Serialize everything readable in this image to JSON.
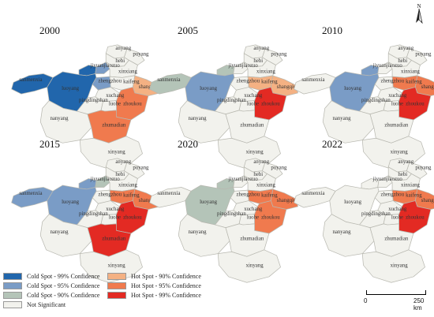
{
  "colors": {
    "cold99": "#2166ac",
    "cold95": "#7a9cc6",
    "cold90": "#b4c4b8",
    "hot90": "#f4b183",
    "hot95": "#f07a4e",
    "hot99": "#e32a23",
    "ns": "#f2f2ed",
    "stroke": "#b8b8b0"
  },
  "panels": [
    {
      "year": "2000",
      "classes": {
        "sanmenxia": "cold99",
        "luoyang": "cold99",
        "jiyuan": "cold99",
        "jiaozuo": "cold95",
        "zhengzhou": "cold95",
        "shangqiu": "hot90",
        "zhoukou": "hot95",
        "zhumadian": "hot95"
      }
    },
    {
      "year": "2005",
      "classes": {
        "sanmenxia": "cold90",
        "luoyang": "cold95",
        "jiyuan": "cold90",
        "shangqiu": "hot90",
        "kaifeng": "hot90",
        "zhoukou": "hot99"
      }
    },
    {
      "year": "2010",
      "classes": {
        "luoyang": "cold95",
        "jiyuan": "cold95",
        "shangqiu": "hot95",
        "zhoukou": "hot99",
        "kaifeng": "hot95"
      }
    },
    {
      "year": "2015",
      "classes": {
        "luoyang": "cold95",
        "jiyuan": "cold95",
        "sanmenxia": "cold95",
        "jiaozuo": "cold90",
        "shangqiu": "hot95",
        "zhoukou": "hot99",
        "kaifeng": "hot95",
        "zhumadian": "hot99"
      }
    },
    {
      "year": "2020",
      "classes": {
        "luoyang": "cold90",
        "jiyuan": "cold90",
        "kaifeng": "hot95",
        "shangqiu": "hot95",
        "zhoukou": "hot95"
      }
    },
    {
      "year": "2022",
      "classes": {
        "kaifeng": "hot95",
        "shangqiu": "hot95",
        "zhoukou": "hot99"
      }
    }
  ],
  "city_labels": {
    "anyang": "anyang",
    "puyang": "puyang",
    "hebi": "hebi",
    "jiyuanjiaozuo": "jiyuanjiaozuo",
    "xinxiang": "xinxiang",
    "sanmenxia": "sanmenxia",
    "zhengzhou": "zhengzhou",
    "kaifeng": "kaifeng",
    "luoyang": "luoyang",
    "shangqiu": "shangqiu",
    "xuchang": "xuchang",
    "pingdingshan": "pingdingshan",
    "luohe": "luohe",
    "zhoukou": "zhoukou",
    "nanyang": "nanyang",
    "zhumadian": "zhumadian",
    "xinyang": "xinyang"
  },
  "legend": [
    {
      "label": "Cold Spot - 99% Confidence",
      "color_key": "cold99"
    },
    {
      "label": "Hot Spot - 90% Confidence",
      "color_key": "hot90"
    },
    {
      "label": "Cold Spot - 95% Confidence",
      "color_key": "cold95"
    },
    {
      "label": "Hot Spot - 95% Confidence",
      "color_key": "hot95"
    },
    {
      "label": "Cold Spot - 90% Confidence",
      "color_key": "cold90"
    },
    {
      "label": "Hot Spot - 99% Confidence",
      "color_key": "hot99"
    },
    {
      "label": "Not Significant",
      "color_key": "ns"
    }
  ],
  "scale": {
    "start": "0",
    "end": "250 km"
  },
  "north_label": "N"
}
